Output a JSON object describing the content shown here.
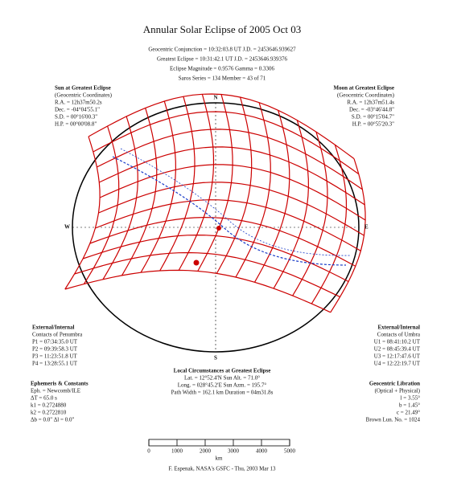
{
  "title": "Annular Solar Eclipse of 2005 Oct 03",
  "header": [
    "Geocentric Conjunction = 10:32:03.8 UT   J.D. = 2453646.939627",
    "Greatest Eclipse = 10:31:42.1 UT   J.D. = 2453646.939376",
    "Eclipse Magnitude = 0.9576   Gamma = 0.3306",
    "Saros Series = 134   Member = 43 of 71"
  ],
  "compass": {
    "north": "N",
    "south": "S",
    "east": "E",
    "west": "W"
  },
  "sun_panel": {
    "title": "Sun at Greatest Eclipse",
    "subtitle": "(Geocentric Coordinates)",
    "lines": [
      "R.A. = 12h37m50.2s",
      "Dec. = -04°04'55.1\"",
      "S.D. = 00°16'00.3\"",
      "H.P. = 00°00'08.8\""
    ]
  },
  "moon_panel": {
    "title": "Moon at Greatest Eclipse",
    "subtitle": "(Geocentric Coordinates)",
    "lines": [
      "R.A. = 12h37m51.4s",
      "Dec. = -03°46'44.8\"",
      "S.D. = 00°15'04.7\"",
      "H.P. = 00°55'20.3\""
    ]
  },
  "external_contacts": {
    "title": "External/Internal",
    "subtitle": "Contacts of Penumbra",
    "lines": [
      "P1 = 07:34:35.0 UT",
      "P2 = 09:39:58.3 UT",
      "P3 = 11:23:51.8 UT",
      "P4 = 13:28:55.1 UT"
    ]
  },
  "umbra_contacts": {
    "title": "External/Internal",
    "subtitle": "Contacts of Umbra",
    "lines": [
      "U1 = 08:41:10.2 UT",
      "U2 = 08:45:39.4 UT",
      "U3 = 12:17:47.6 UT",
      "U4 = 12:22:19.7 UT"
    ]
  },
  "local": {
    "title": "Local Circumstances at Greatest Eclipse",
    "lines": [
      "Lat. = 12°52.4'N   Sun Alt. = 71.0°",
      "Long. = 028°45.2'E   Sun Azm. = 195.7°",
      "Path Width = 162.1 km   Duration = 04m31.8s"
    ]
  },
  "ephemeris": {
    "title": "Ephemeris & Constants",
    "lines": [
      "Eph. = Newcomb/ILE",
      "ΔT = 65.0 s",
      "k1 = 0.2724880",
      "k2 = 0.2722810",
      "Δb = 0.0\"   Δl = 0.0\""
    ]
  },
  "libration": {
    "title": "Geocentric Libration",
    "subtitle": "(Optical + Physical)",
    "lines": [
      "l = 3.55°",
      "b = 1.45°",
      "c = 21.49°",
      "Brown Lun. No. = 1024"
    ]
  },
  "scale": {
    "ticks": [
      "0",
      "1000",
      "2000",
      "3000",
      "4000",
      "5000"
    ],
    "unit": "km"
  },
  "footer": "F. Espenak, NASA's GSFC - Thu, 2003 Mar 13"
}
